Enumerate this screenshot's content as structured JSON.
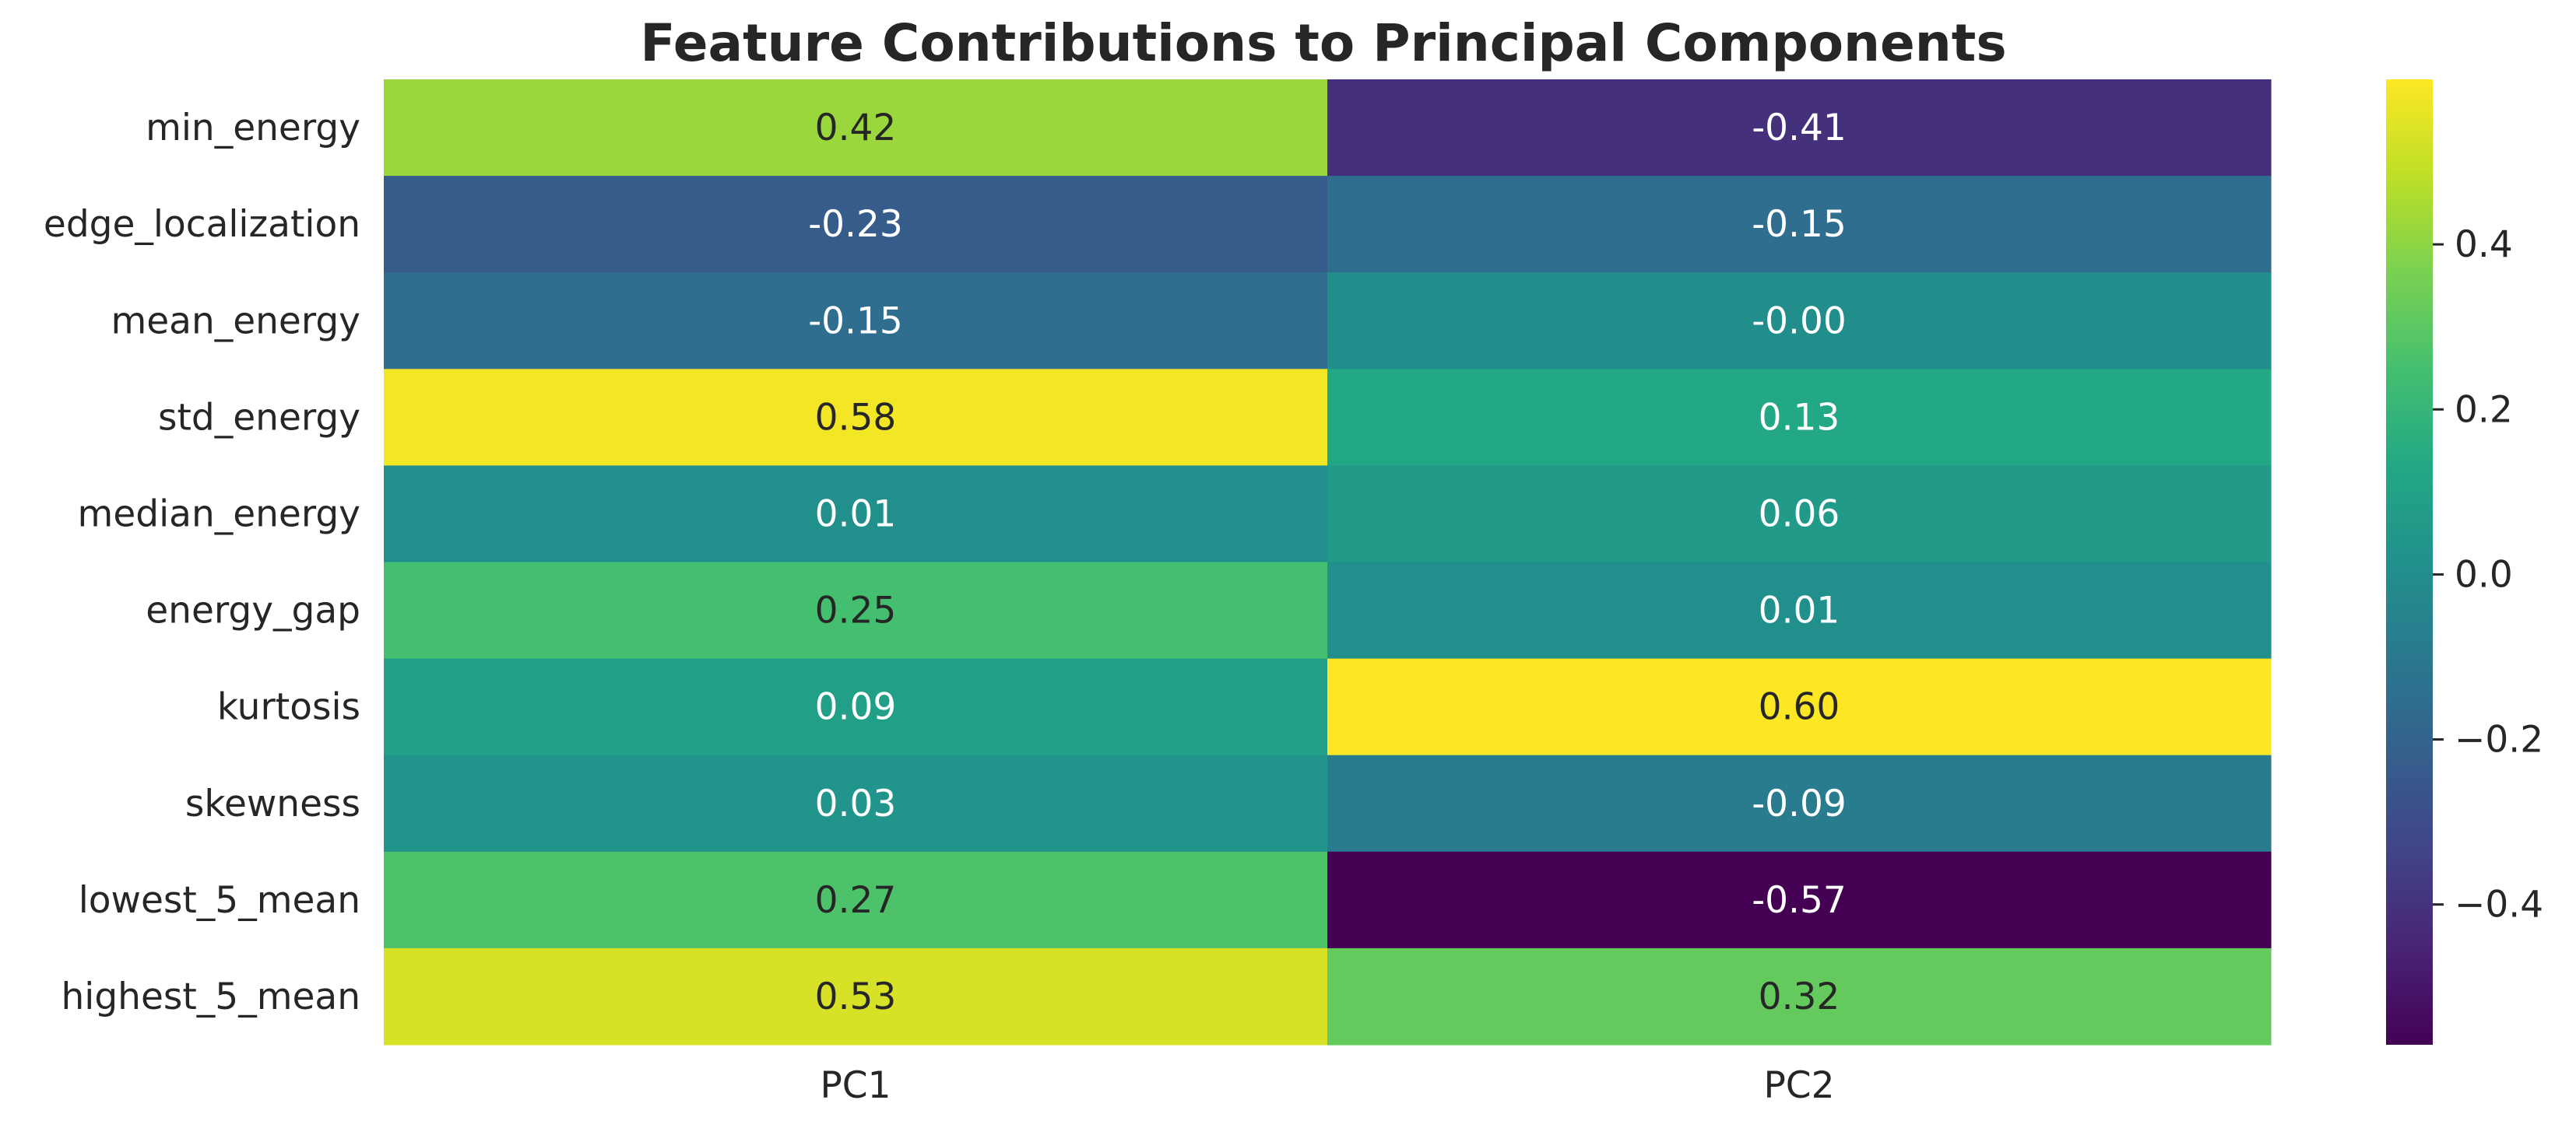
{
  "chart_data": {
    "type": "heatmap",
    "title": "Feature Contributions to Principal Components",
    "rows": [
      "min_energy",
      "edge_localization",
      "mean_energy",
      "std_energy",
      "median_energy",
      "energy_gap",
      "kurtosis",
      "skewness",
      "lowest_5_mean",
      "highest_5_mean"
    ],
    "columns": [
      "PC1",
      "PC2"
    ],
    "values": [
      [
        0.42,
        -0.41
      ],
      [
        -0.23,
        -0.15
      ],
      [
        -0.15,
        -0.0
      ],
      [
        0.58,
        0.13
      ],
      [
        0.01,
        0.06
      ],
      [
        0.25,
        0.01
      ],
      [
        0.09,
        0.6
      ],
      [
        0.03,
        -0.09
      ],
      [
        0.27,
        -0.57
      ],
      [
        0.53,
        0.32
      ]
    ],
    "value_labels": [
      [
        "0.42",
        "-0.41"
      ],
      [
        "-0.23",
        "-0.15"
      ],
      [
        "-0.15",
        "-0.00"
      ],
      [
        "0.58",
        "0.13"
      ],
      [
        "0.01",
        "0.06"
      ],
      [
        "0.25",
        "0.01"
      ],
      [
        "0.09",
        "0.60"
      ],
      [
        "0.03",
        "-0.09"
      ],
      [
        "0.27",
        "-0.57"
      ],
      [
        "0.53",
        "0.32"
      ]
    ],
    "colormap": "viridis",
    "vmin": -0.57,
    "vmax": 0.6,
    "colorbar_ticks": [
      0.4,
      0.2,
      0.0,
      -0.2,
      -0.4
    ],
    "colorbar_tick_labels": [
      "0.4",
      "0.2",
      "0.0",
      "−0.2",
      "−0.4"
    ],
    "grid": false,
    "text_colors": {
      "dark": "#262626",
      "light": "#ffffff"
    }
  }
}
